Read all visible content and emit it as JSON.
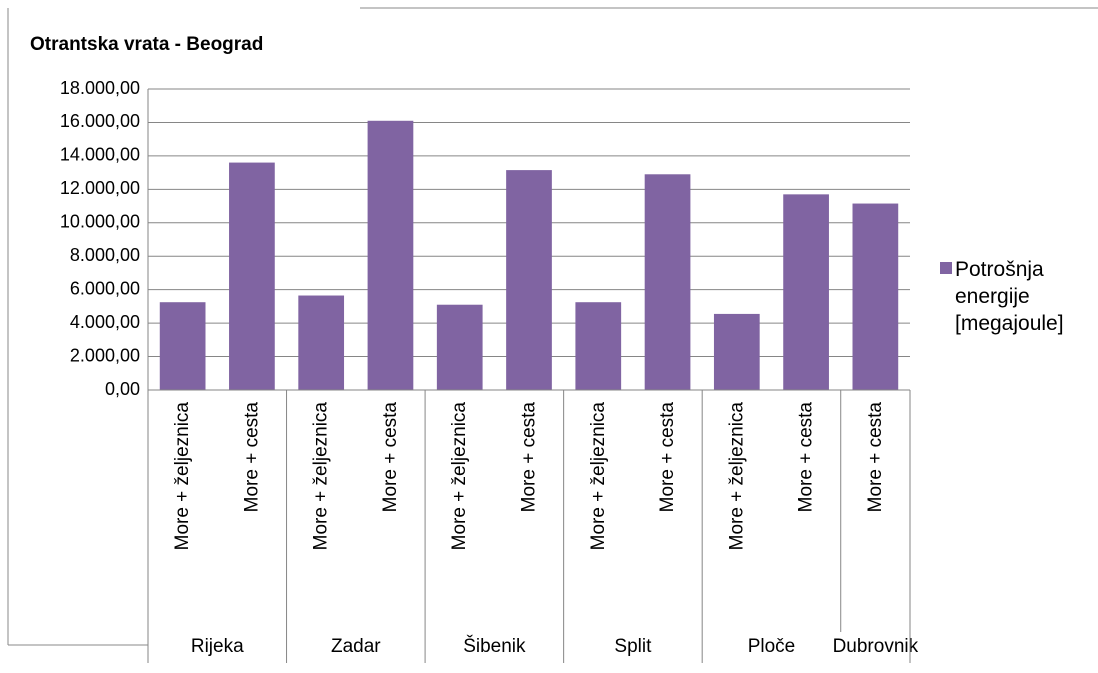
{
  "chart_data": {
    "type": "bar",
    "title": "Otrantska vrata - Beograd",
    "series": [
      {
        "name": "Potrošnja energije [megajoule]",
        "color": "#8064a2"
      }
    ],
    "groups": [
      {
        "name": "Rijeka",
        "categories": [
          "More + željeznica",
          "More + cesta"
        ],
        "values": [
          5250,
          13600
        ]
      },
      {
        "name": "Zadar",
        "categories": [
          "More + željeznica",
          "More + cesta"
        ],
        "values": [
          5650,
          16100
        ]
      },
      {
        "name": "Šibenik",
        "categories": [
          "More + željeznica",
          "More + cesta"
        ],
        "values": [
          5100,
          13150
        ]
      },
      {
        "name": "Split",
        "categories": [
          "More + željeznica",
          "More + cesta"
        ],
        "values": [
          5250,
          12900
        ]
      },
      {
        "name": "Ploče",
        "categories": [
          "More + željeznica",
          "More + cesta"
        ],
        "values": [
          4550,
          11700
        ]
      },
      {
        "name": "Dubrovnik",
        "categories": [
          "More + cesta"
        ],
        "values": [
          11150
        ]
      }
    ],
    "ylim": [
      0,
      18000
    ],
    "yticks": [
      {
        "value": 0,
        "label": "0,00"
      },
      {
        "value": 2000,
        "label": "2.000,00"
      },
      {
        "value": 4000,
        "label": "4.000,00"
      },
      {
        "value": 6000,
        "label": "6.000,00"
      },
      {
        "value": 8000,
        "label": "8.000,00"
      },
      {
        "value": 10000,
        "label": "10.000,00"
      },
      {
        "value": 12000,
        "label": "12.000,00"
      },
      {
        "value": 14000,
        "label": "14.000,00"
      },
      {
        "value": 16000,
        "label": "16.000,00"
      },
      {
        "value": 18000,
        "label": "18.000,00"
      }
    ],
    "grid": true,
    "legend": "right"
  }
}
